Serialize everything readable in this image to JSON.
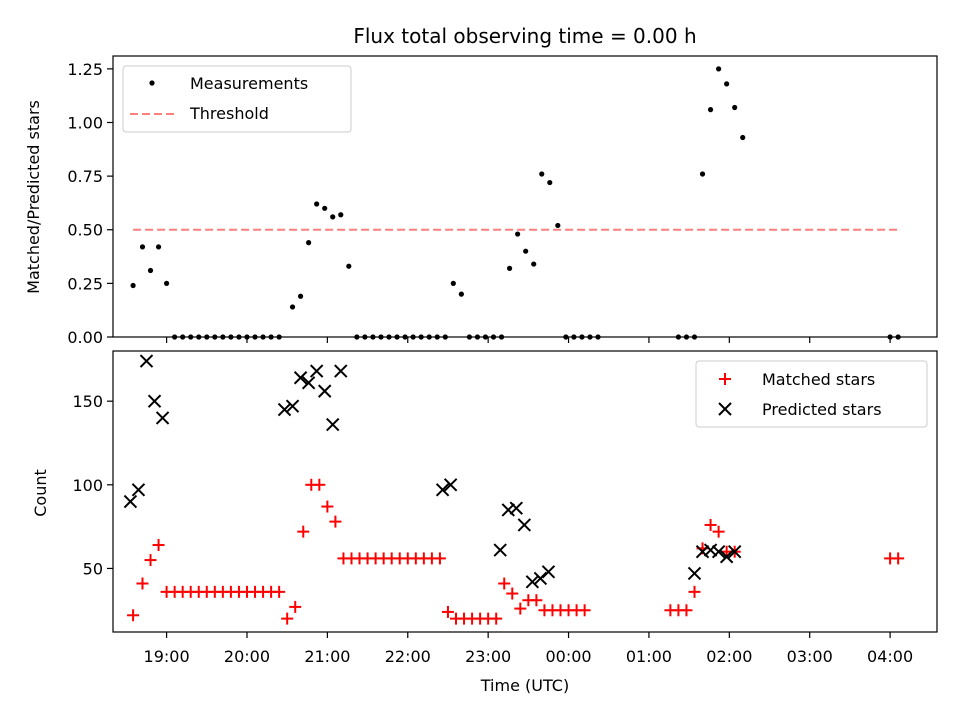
{
  "figure": {
    "title": "Flux total observing time = 0.00 h"
  },
  "chart_data": [
    {
      "type": "scatter",
      "title": "Flux total observing time = 0.00 h",
      "xlabel": "",
      "ylabel": "Matched/Predicted stars",
      "xlim": [
        "18:20",
        "04:35"
      ],
      "ylim": [
        0,
        1.31
      ],
      "yticks": [
        "0.00",
        "0.25",
        "0.50",
        "0.75",
        "1.00",
        "1.25"
      ],
      "grid": false,
      "legend_position": "top-left",
      "series": [
        {
          "name": "Measurements",
          "marker": "dot",
          "color": "#000000",
          "points": [
            [
              "18:35",
              0.24
            ],
            [
              "18:42",
              0.42
            ],
            [
              "18:48",
              0.31
            ],
            [
              "18:54",
              0.42
            ],
            [
              "19:00",
              0.25
            ],
            [
              "19:06",
              0.0
            ],
            [
              "19:12",
              0.0
            ],
            [
              "19:18",
              0.0
            ],
            [
              "19:24",
              0.0
            ],
            [
              "19:30",
              0.0
            ],
            [
              "19:36",
              0.0
            ],
            [
              "19:42",
              0.0
            ],
            [
              "19:48",
              0.0
            ],
            [
              "19:54",
              0.0
            ],
            [
              "20:00",
              0.0
            ],
            [
              "20:06",
              0.0
            ],
            [
              "20:12",
              0.0
            ],
            [
              "20:18",
              0.0
            ],
            [
              "20:24",
              0.0
            ],
            [
              "20:34",
              0.14
            ],
            [
              "20:40",
              0.19
            ],
            [
              "20:46",
              0.44
            ],
            [
              "20:52",
              0.62
            ],
            [
              "20:58",
              0.6
            ],
            [
              "21:04",
              0.56
            ],
            [
              "21:10",
              0.57
            ],
            [
              "21:16",
              0.33
            ],
            [
              "21:22",
              0.0
            ],
            [
              "21:28",
              0.0
            ],
            [
              "21:34",
              0.0
            ],
            [
              "21:40",
              0.0
            ],
            [
              "21:46",
              0.0
            ],
            [
              "21:52",
              0.0
            ],
            [
              "21:58",
              0.0
            ],
            [
              "22:04",
              0.0
            ],
            [
              "22:10",
              0.0
            ],
            [
              "22:16",
              0.0
            ],
            [
              "22:22",
              0.0
            ],
            [
              "22:28",
              0.0
            ],
            [
              "22:34",
              0.25
            ],
            [
              "22:40",
              0.2
            ],
            [
              "22:46",
              0.0
            ],
            [
              "22:52",
              0.0
            ],
            [
              "22:58",
              0.0
            ],
            [
              "23:04",
              0.0
            ],
            [
              "23:10",
              0.0
            ],
            [
              "23:16",
              0.32
            ],
            [
              "23:22",
              0.48
            ],
            [
              "23:28",
              0.4
            ],
            [
              "23:34",
              0.34
            ],
            [
              "23:40",
              0.76
            ],
            [
              "23:46",
              0.72
            ],
            [
              "23:52",
              0.52
            ],
            [
              "23:58",
              0.0
            ],
            [
              "00:04",
              0.0
            ],
            [
              "00:10",
              0.0
            ],
            [
              "00:16",
              0.0
            ],
            [
              "00:22",
              0.0
            ],
            [
              "01:22",
              0.0
            ],
            [
              "01:28",
              0.0
            ],
            [
              "01:34",
              0.0
            ],
            [
              "01:40",
              0.76
            ],
            [
              "01:46",
              1.06
            ],
            [
              "01:52",
              1.25
            ],
            [
              "01:58",
              1.18
            ],
            [
              "02:04",
              1.07
            ],
            [
              "02:10",
              0.93
            ],
            [
              "04:00",
              0.0
            ],
            [
              "04:06",
              0.0
            ]
          ]
        },
        {
          "name": "Threshold",
          "marker": "dashed-line",
          "color": "#ff7f7f",
          "points": [
            [
              "18:35",
              0.5
            ],
            [
              "04:06",
              0.5
            ]
          ]
        }
      ]
    },
    {
      "type": "scatter",
      "title": "",
      "xlabel": "Time (UTC)",
      "ylabel": "Count",
      "xlim": [
        "18:20",
        "04:35"
      ],
      "ylim": [
        12,
        180
      ],
      "yticks": [
        "50",
        "100",
        "150"
      ],
      "xticks": [
        "19:00",
        "20:00",
        "21:00",
        "22:00",
        "23:00",
        "00:00",
        "01:00",
        "02:00",
        "03:00",
        "04:00"
      ],
      "grid": false,
      "legend_position": "top-right",
      "series": [
        {
          "name": "Matched stars",
          "marker": "plus",
          "color": "#ff0000",
          "points": [
            [
              "18:35",
              22
            ],
            [
              "18:42",
              41
            ],
            [
              "18:48",
              55
            ],
            [
              "18:54",
              64
            ],
            [
              "19:00",
              36
            ],
            [
              "19:06",
              36
            ],
            [
              "19:12",
              36
            ],
            [
              "19:18",
              36
            ],
            [
              "19:24",
              36
            ],
            [
              "19:30",
              36
            ],
            [
              "19:36",
              36
            ],
            [
              "19:42",
              36
            ],
            [
              "19:48",
              36
            ],
            [
              "19:54",
              36
            ],
            [
              "20:00",
              36
            ],
            [
              "20:06",
              36
            ],
            [
              "20:12",
              36
            ],
            [
              "20:18",
              36
            ],
            [
              "20:24",
              36
            ],
            [
              "20:30",
              20
            ],
            [
              "20:36",
              27
            ],
            [
              "20:42",
              72
            ],
            [
              "20:48",
              100
            ],
            [
              "20:54",
              100
            ],
            [
              "21:00",
              87
            ],
            [
              "21:06",
              78
            ],
            [
              "21:12",
              56
            ],
            [
              "21:18",
              56
            ],
            [
              "21:24",
              56
            ],
            [
              "21:30",
              56
            ],
            [
              "21:36",
              56
            ],
            [
              "21:42",
              56
            ],
            [
              "21:48",
              56
            ],
            [
              "21:54",
              56
            ],
            [
              "22:00",
              56
            ],
            [
              "22:06",
              56
            ],
            [
              "22:12",
              56
            ],
            [
              "22:18",
              56
            ],
            [
              "22:24",
              56
            ],
            [
              "22:30",
              24
            ],
            [
              "22:36",
              20
            ],
            [
              "22:42",
              20
            ],
            [
              "22:48",
              20
            ],
            [
              "22:54",
              20
            ],
            [
              "23:00",
              20
            ],
            [
              "23:06",
              20
            ],
            [
              "23:12",
              41
            ],
            [
              "23:18",
              35
            ],
            [
              "23:24",
              26
            ],
            [
              "23:30",
              31
            ],
            [
              "23:36",
              31
            ],
            [
              "23:42",
              25
            ],
            [
              "23:48",
              25
            ],
            [
              "23:54",
              25
            ],
            [
              "00:00",
              25
            ],
            [
              "00:06",
              25
            ],
            [
              "00:12",
              25
            ],
            [
              "01:16",
              25
            ],
            [
              "01:22",
              25
            ],
            [
              "01:28",
              25
            ],
            [
              "01:34",
              36
            ],
            [
              "01:40",
              62
            ],
            [
              "01:46",
              76
            ],
            [
              "01:52",
              72
            ],
            [
              "01:58",
              60
            ],
            [
              "02:04",
              60
            ],
            [
              "04:00",
              56
            ],
            [
              "04:06",
              56
            ]
          ]
        },
        {
          "name": "Predicted stars",
          "marker": "x",
          "color": "#000000",
          "points": [
            [
              "18:33",
              90
            ],
            [
              "18:39",
              97
            ],
            [
              "18:45",
              174
            ],
            [
              "18:51",
              150
            ],
            [
              "18:57",
              140
            ],
            [
              "20:28",
              145
            ],
            [
              "20:34",
              147
            ],
            [
              "20:40",
              164
            ],
            [
              "20:46",
              161
            ],
            [
              "20:52",
              168
            ],
            [
              "20:58",
              156
            ],
            [
              "21:04",
              136
            ],
            [
              "21:10",
              168
            ],
            [
              "22:26",
              97
            ],
            [
              "22:32",
              100
            ],
            [
              "23:09",
              61
            ],
            [
              "23:15",
              85
            ],
            [
              "23:21",
              86
            ],
            [
              "23:27",
              76
            ],
            [
              "23:33",
              42
            ],
            [
              "23:39",
              44
            ],
            [
              "23:45",
              48
            ],
            [
              "01:34",
              47
            ],
            [
              "01:40",
              60
            ],
            [
              "01:46",
              61
            ],
            [
              "01:52",
              60
            ],
            [
              "01:58",
              57
            ],
            [
              "02:04",
              60
            ]
          ]
        }
      ]
    }
  ]
}
